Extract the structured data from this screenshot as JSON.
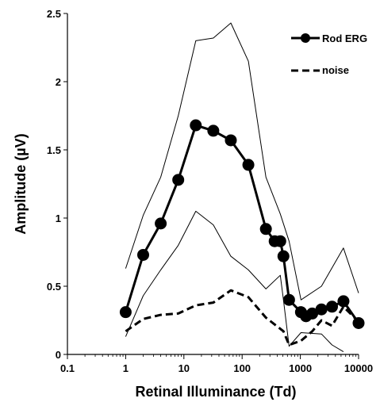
{
  "chart_data": {
    "type": "line",
    "title": "",
    "xlabel": "Retinal Illuminance (Td)",
    "ylabel": "Amplitude (µV)",
    "xscale": "log",
    "xlim": [
      0.1,
      10000
    ],
    "ylim": [
      0,
      2.5
    ],
    "x_ticks": [
      0.1,
      1,
      10,
      100,
      1000,
      10000
    ],
    "x_tick_labels": [
      "0.1",
      "1",
      "10",
      "100",
      "1000",
      "10000"
    ],
    "y_ticks": [
      0,
      0.5,
      1,
      1.5,
      2,
      2.5
    ],
    "y_tick_labels": [
      "0",
      "0.5",
      "1",
      "1.5",
      "2",
      "2.5"
    ],
    "grid": false,
    "legend_position": "top-right",
    "series": [
      {
        "name": "Rod ERG",
        "style": "solid-markers",
        "color": "#000000",
        "x": [
          1,
          2,
          4,
          8,
          16,
          32,
          64,
          128,
          256,
          362,
          452,
          512,
          640,
          1024,
          1250,
          1600,
          2300,
          3500,
          5500,
          10000
        ],
        "y": [
          0.31,
          0.73,
          0.96,
          1.28,
          1.68,
          1.64,
          1.57,
          1.39,
          0.92,
          0.83,
          0.83,
          0.72,
          0.4,
          0.31,
          0.28,
          0.3,
          0.33,
          0.35,
          0.39,
          0.23
        ]
      },
      {
        "name": "noise",
        "style": "dashed",
        "color": "#000000",
        "x": [
          1,
          2,
          4,
          8,
          16,
          32,
          64,
          128,
          256,
          512,
          640,
          1024,
          1600,
          2300,
          3500,
          5500,
          10000
        ],
        "y": [
          0.17,
          0.26,
          0.29,
          0.3,
          0.36,
          0.38,
          0.47,
          0.42,
          0.27,
          0.17,
          0.07,
          0.1,
          0.17,
          0.25,
          0.21,
          0.35,
          0.24
        ]
      },
      {
        "style": "thin-upper",
        "color": "#000000",
        "x": [
          1,
          2,
          4,
          8,
          16,
          32,
          64,
          128,
          256,
          452,
          640,
          1024,
          2300,
          5500,
          10000
        ],
        "y": [
          0.63,
          1.02,
          1.3,
          1.75,
          2.3,
          2.32,
          2.43,
          2.15,
          1.3,
          1.03,
          0.83,
          0.4,
          0.5,
          0.78,
          0.45
        ]
      },
      {
        "style": "thin-lower",
        "color": "#000000",
        "x": [
          1,
          2,
          4,
          8,
          16,
          32,
          64,
          128,
          256,
          452,
          512,
          640,
          1024,
          2300,
          3500,
          5500
        ],
        "y": [
          0.13,
          0.43,
          0.62,
          0.8,
          1.05,
          0.95,
          0.72,
          0.62,
          0.48,
          0.58,
          0.4,
          0.06,
          0.16,
          0.15,
          0.07,
          0.02
        ]
      }
    ]
  }
}
